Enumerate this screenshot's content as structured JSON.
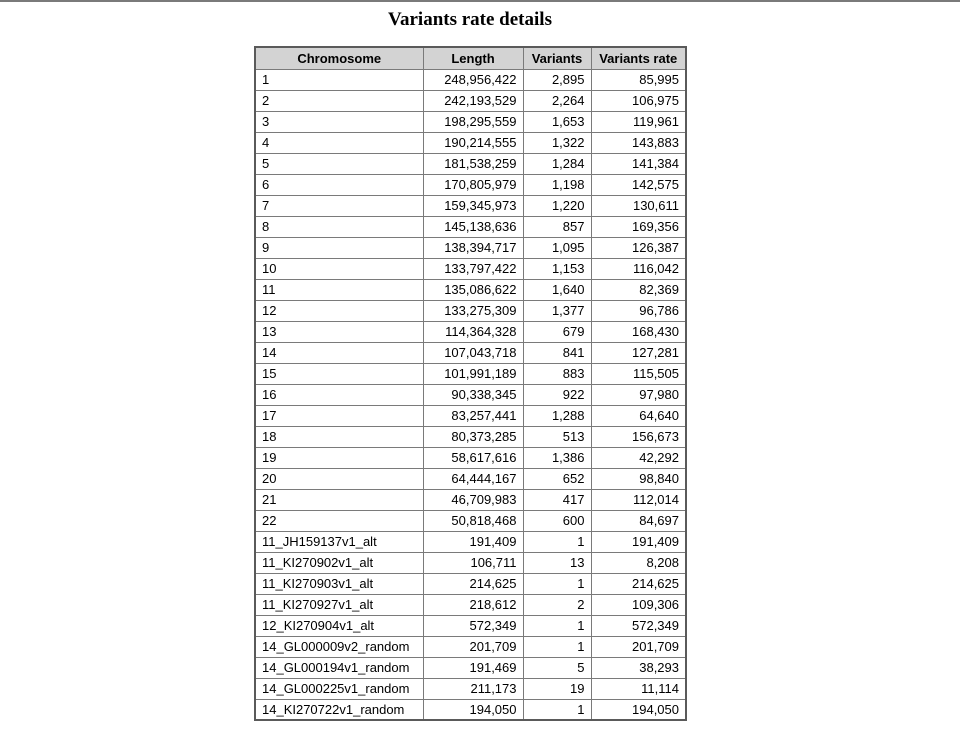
{
  "title": "Variants rate details",
  "table": {
    "headers": [
      "Chromosome",
      "Length",
      "Variants",
      "Variants rate"
    ],
    "rows": [
      [
        "1",
        "248,956,422",
        "2,895",
        "85,995"
      ],
      [
        "2",
        "242,193,529",
        "2,264",
        "106,975"
      ],
      [
        "3",
        "198,295,559",
        "1,653",
        "119,961"
      ],
      [
        "4",
        "190,214,555",
        "1,322",
        "143,883"
      ],
      [
        "5",
        "181,538,259",
        "1,284",
        "141,384"
      ],
      [
        "6",
        "170,805,979",
        "1,198",
        "142,575"
      ],
      [
        "7",
        "159,345,973",
        "1,220",
        "130,611"
      ],
      [
        "8",
        "145,138,636",
        "857",
        "169,356"
      ],
      [
        "9",
        "138,394,717",
        "1,095",
        "126,387"
      ],
      [
        "10",
        "133,797,422",
        "1,153",
        "116,042"
      ],
      [
        "11",
        "135,086,622",
        "1,640",
        "82,369"
      ],
      [
        "12",
        "133,275,309",
        "1,377",
        "96,786"
      ],
      [
        "13",
        "114,364,328",
        "679",
        "168,430"
      ],
      [
        "14",
        "107,043,718",
        "841",
        "127,281"
      ],
      [
        "15",
        "101,991,189",
        "883",
        "115,505"
      ],
      [
        "16",
        "90,338,345",
        "922",
        "97,980"
      ],
      [
        "17",
        "83,257,441",
        "1,288",
        "64,640"
      ],
      [
        "18",
        "80,373,285",
        "513",
        "156,673"
      ],
      [
        "19",
        "58,617,616",
        "1,386",
        "42,292"
      ],
      [
        "20",
        "64,444,167",
        "652",
        "98,840"
      ],
      [
        "21",
        "46,709,983",
        "417",
        "112,014"
      ],
      [
        "22",
        "50,818,468",
        "600",
        "84,697"
      ],
      [
        "11_JH159137v1_alt",
        "191,409",
        "1",
        "191,409"
      ],
      [
        "11_KI270902v1_alt",
        "106,711",
        "13",
        "8,208"
      ],
      [
        "11_KI270903v1_alt",
        "214,625",
        "1",
        "214,625"
      ],
      [
        "11_KI270927v1_alt",
        "218,612",
        "2",
        "109,306"
      ],
      [
        "12_KI270904v1_alt",
        "572,349",
        "1",
        "572,349"
      ],
      [
        "14_GL000009v2_random",
        "201,709",
        "1",
        "201,709"
      ],
      [
        "14_GL000194v1_random",
        "191,469",
        "5",
        "38,293"
      ],
      [
        "14_GL000225v1_random",
        "211,173",
        "19",
        "11,114"
      ],
      [
        "14_KI270722v1_random",
        "194,050",
        "1",
        "194,050"
      ]
    ]
  }
}
